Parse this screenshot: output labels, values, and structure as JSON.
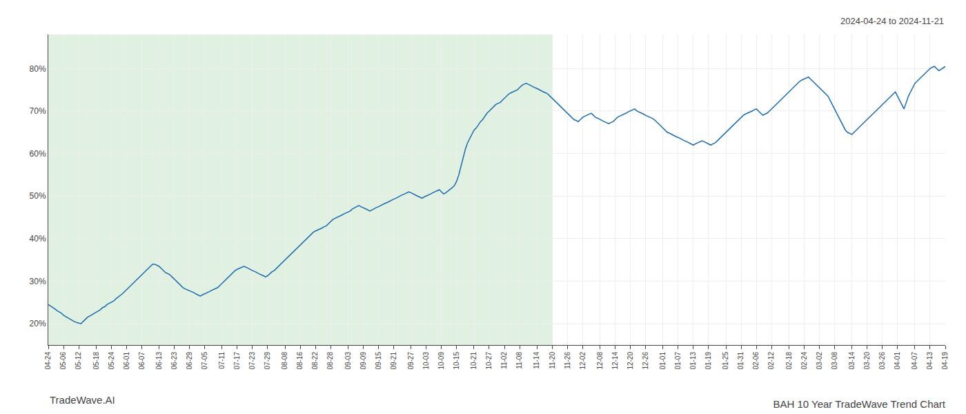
{
  "chart_data": {
    "type": "line",
    "title": "BAH 10 Year TradeWave Trend Chart",
    "annotations": [
      "2024-04-24 to 2024-11-21",
      "TradeWave.AI"
    ],
    "categories": [
      "04-24",
      null,
      null,
      null,
      null,
      null,
      null,
      "05-06",
      null,
      null,
      null,
      null,
      null,
      null,
      "05-12",
      null,
      null,
      null,
      null,
      null,
      null,
      null,
      "05-18",
      null,
      null,
      null,
      null,
      null,
      null,
      "05-24",
      null,
      null,
      null,
      null,
      null,
      null,
      "06-01",
      null,
      null,
      null,
      null,
      null,
      null,
      "06-07",
      null,
      null,
      null,
      null,
      null,
      null,
      null,
      "06-13",
      null,
      null,
      null,
      null,
      null,
      null,
      "06-23",
      null,
      null,
      null,
      null,
      null,
      null,
      "06-29",
      null,
      null,
      null,
      null,
      null,
      null,
      "07-05",
      null,
      null,
      null,
      null,
      null,
      null,
      null,
      "07-11",
      null,
      null,
      null,
      null,
      null,
      null,
      "07-17",
      null,
      null,
      null,
      null,
      null,
      null,
      "07-23",
      null,
      null,
      null,
      null,
      null,
      null,
      "07-29",
      null,
      null,
      null,
      null,
      null,
      null,
      null,
      "08-08",
      null,
      null,
      null,
      null,
      null,
      null,
      "08-16",
      null,
      null,
      null,
      null,
      null,
      null,
      "08-22",
      null,
      null,
      null,
      null,
      null,
      null,
      "08-28",
      null,
      null,
      null,
      null,
      null,
      null,
      null,
      "09-03",
      null,
      null,
      null,
      null,
      null,
      null,
      "09-09",
      null,
      null,
      null,
      null,
      null,
      null,
      "09-15",
      null,
      null,
      null,
      null,
      null,
      null,
      "09-21",
      null,
      null,
      null,
      null,
      null,
      null,
      null,
      "09-27",
      null,
      null,
      null,
      null,
      null,
      null,
      "10-03",
      null,
      null,
      null,
      null,
      null,
      null,
      "10-09",
      null,
      null,
      null,
      null,
      null,
      null,
      "10-15",
      null,
      null,
      null,
      null,
      null,
      null,
      null,
      "10-21",
      null,
      null,
      null,
      null,
      null,
      null,
      "10-27",
      null,
      null,
      null,
      null,
      null,
      null,
      "11-02",
      null,
      null,
      null,
      null,
      null,
      null,
      "11-08",
      null,
      null,
      null,
      null,
      null,
      null,
      null,
      "11-14",
      null,
      null,
      null,
      null,
      null,
      null,
      "11-20",
      null,
      null,
      null,
      null,
      null,
      null,
      "11-26",
      null,
      null,
      null,
      null,
      null,
      null,
      "12-02",
      null,
      null,
      null,
      null,
      null,
      null,
      null,
      "12-08",
      null,
      null,
      null,
      null,
      null,
      null,
      "12-14",
      null,
      null,
      null,
      null,
      null,
      null,
      "12-20",
      null,
      null,
      null,
      null,
      null,
      null,
      "12-26",
      null,
      null,
      null,
      null,
      null,
      null,
      null,
      "01-01",
      null,
      null,
      null,
      null,
      null,
      null,
      "01-07",
      null,
      null,
      null,
      null,
      null,
      null,
      "01-13",
      null,
      null,
      null,
      null,
      null,
      null,
      "01-19",
      null,
      null,
      null,
      null,
      null,
      null,
      null,
      "01-25",
      null,
      null,
      null,
      null,
      null,
      null,
      "01-31",
      null,
      null,
      null,
      null,
      null,
      null,
      "02-06",
      null,
      null,
      null,
      null,
      null,
      null,
      "02-12",
      null,
      null,
      null,
      null,
      null,
      null,
      null,
      "02-18",
      null,
      null,
      null,
      null,
      null,
      null,
      "02-24",
      null,
      null,
      null,
      null,
      null,
      null,
      "03-02",
      null,
      null,
      null,
      null,
      null,
      null,
      "03-08",
      null,
      null,
      null,
      null,
      null,
      null,
      null,
      "03-14",
      null,
      null,
      null,
      null,
      null,
      null,
      "03-20",
      null,
      null,
      null,
      null,
      null,
      null,
      "03-26",
      null,
      null,
      null,
      null,
      null,
      null,
      "04-01",
      null,
      null,
      null,
      null,
      null,
      null,
      null,
      "04-07",
      null,
      null,
      null,
      null,
      null,
      null,
      "04-13",
      null,
      null,
      null,
      null,
      null,
      null,
      "04-19"
    ],
    "values": [
      24.5,
      24.2,
      23.8,
      23.5,
      23.1,
      22.8,
      22.5,
      22.0,
      21.7,
      21.3,
      21.0,
      20.8,
      20.5,
      20.3,
      20.2,
      20.0,
      20.5,
      21.0,
      21.5,
      21.8,
      22.1,
      22.5,
      22.8,
      23.0,
      23.3,
      23.8,
      24.0,
      24.5,
      24.8,
      25.0,
      25.3,
      25.8,
      26.2,
      26.5,
      27.0,
      27.5,
      28.0,
      28.5,
      29.0,
      29.5,
      30.0,
      30.5,
      31.0,
      31.5,
      32.0,
      32.5,
      33.0,
      33.5,
      34.0,
      34.0,
      33.8,
      33.5,
      33.0,
      32.5,
      32.0,
      31.8,
      31.5,
      31.0,
      30.5,
      30.0,
      29.5,
      29.0,
      28.5,
      28.2,
      28.0,
      27.8,
      27.5,
      27.3,
      27.0,
      26.8,
      26.5,
      26.8,
      27.0,
      27.3,
      27.5,
      27.8,
      28.0,
      28.3,
      28.5,
      29.0,
      29.5,
      30.0,
      30.5,
      31.0,
      31.5,
      32.0,
      32.5,
      32.8,
      33.0,
      33.3,
      33.5,
      33.3,
      33.0,
      32.8,
      32.5,
      32.3,
      32.0,
      31.8,
      31.5,
      31.3,
      31.0,
      31.3,
      31.8,
      32.2,
      32.5,
      33.0,
      33.5,
      34.0,
      34.5,
      35.0,
      35.5,
      36.0,
      36.5,
      37.0,
      37.5,
      38.0,
      38.5,
      39.0,
      39.5,
      40.0,
      40.5,
      41.0,
      41.5,
      41.8,
      42.0,
      42.3,
      42.5,
      42.8,
      43.0,
      43.5,
      44.0,
      44.5,
      44.8,
      45.0,
      45.3,
      45.5,
      45.8,
      46.0,
      46.3,
      46.5,
      47.0,
      47.3,
      47.5,
      47.8,
      47.5,
      47.3,
      47.0,
      46.8,
      46.5,
      46.8,
      47.0,
      47.3,
      47.5,
      47.8,
      48.0,
      48.3,
      48.5,
      48.8,
      49.0,
      49.3,
      49.5,
      49.8,
      50.0,
      50.3,
      50.5,
      50.8,
      51.0,
      50.8,
      50.5,
      50.3,
      50.0,
      49.8,
      49.5,
      49.8,
      50.0,
      50.3,
      50.5,
      50.8,
      51.0,
      51.3,
      51.5,
      51.0,
      50.5,
      50.8,
      51.2,
      51.5,
      52.0,
      52.5,
      53.5,
      55.0,
      57.0,
      59.0,
      61.0,
      62.5,
      63.5,
      64.5,
      65.5,
      66.0,
      66.8,
      67.5,
      68.0,
      68.8,
      69.5,
      70.0,
      70.5,
      71.0,
      71.5,
      71.8,
      72.0,
      72.5,
      73.0,
      73.5,
      74.0,
      74.3,
      74.5,
      74.8,
      75.0,
      75.5,
      76.0,
      76.3,
      76.5,
      76.3,
      76.0,
      75.8,
      75.5,
      75.3,
      75.0,
      74.8,
      74.5,
      74.3,
      74.0,
      73.5,
      73.0,
      72.5,
      72.0,
      71.5,
      71.0,
      70.5,
      70.0,
      69.5,
      69.0,
      68.5,
      68.0,
      67.8,
      67.5,
      68.0,
      68.5,
      68.8,
      69.0,
      69.3,
      69.5,
      69.0,
      68.5,
      68.3,
      68.0,
      67.8,
      67.5,
      67.3,
      67.0,
      67.3,
      67.5,
      68.0,
      68.5,
      68.8,
      69.0,
      69.3,
      69.5,
      69.8,
      70.0,
      70.3,
      70.5,
      70.0,
      69.8,
      69.5,
      69.3,
      69.0,
      68.8,
      68.5,
      68.3,
      68.0,
      67.5,
      67.0,
      66.5,
      66.0,
      65.5,
      65.0,
      64.8,
      64.5,
      64.3,
      64.0,
      63.8,
      63.5,
      63.3,
      63.0,
      62.8,
      62.5,
      62.3,
      62.0,
      62.3,
      62.5,
      62.8,
      63.0,
      62.8,
      62.5,
      62.3,
      62.0,
      62.3,
      62.5,
      63.0,
      63.5,
      64.0,
      64.5,
      65.0,
      65.5,
      66.0,
      66.5,
      67.0,
      67.5,
      68.0,
      68.5,
      69.0,
      69.3,
      69.5,
      69.8,
      70.0,
      70.3,
      70.5,
      70.0,
      69.5,
      69.0,
      69.3,
      69.5,
      70.0,
      70.5,
      71.0,
      71.5,
      72.0,
      72.5,
      73.0,
      73.5,
      74.0,
      74.5,
      75.0,
      75.5,
      76.0,
      76.5,
      77.0,
      77.3,
      77.5,
      77.8,
      78.0,
      77.5,
      77.0,
      76.5,
      76.0,
      75.5,
      75.0,
      74.5,
      74.0,
      73.5,
      72.5,
      71.5,
      70.5,
      69.5,
      68.5,
      67.5,
      66.5,
      65.5,
      65.0,
      64.8,
      64.5,
      65.0,
      65.5,
      66.0,
      66.5,
      67.0,
      67.5,
      68.0,
      68.5,
      69.0,
      69.5,
      70.0,
      70.5,
      71.0,
      71.5,
      72.0,
      72.5,
      73.0,
      73.5,
      74.0,
      74.5,
      73.5,
      72.5,
      71.5,
      70.5,
      72.0,
      73.5,
      74.5,
      75.5,
      76.5,
      77.0,
      77.5,
      78.0,
      78.5,
      79.0,
      79.5,
      80.0,
      80.3,
      80.5,
      80.0,
      79.5,
      79.8,
      80.2,
      80.5
    ],
    "color": "#1a6baf",
    "shaded_region": {
      "start": "04-24",
      "end": "11-20",
      "color": "#c8e6c9"
    },
    "ylim": [
      15,
      88
    ],
    "yticks": [
      {
        "value": 20,
        "label": "20%"
      },
      {
        "value": 30,
        "label": "30%"
      },
      {
        "value": 40,
        "label": "40%"
      },
      {
        "value": 50,
        "label": "50%"
      },
      {
        "value": 60,
        "label": "60%"
      },
      {
        "value": 70,
        "label": "70%"
      },
      {
        "value": 80,
        "label": "80%"
      }
    ],
    "grid": true
  }
}
